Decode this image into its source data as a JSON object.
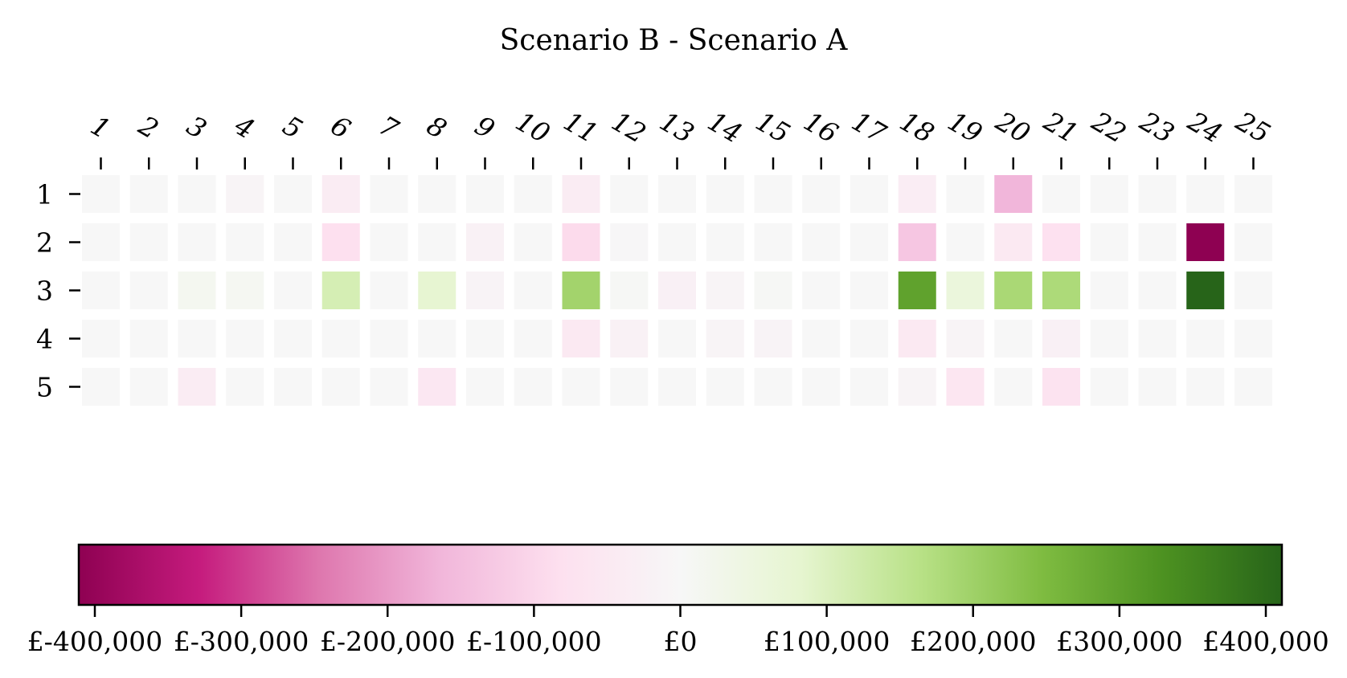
{
  "chart_data": {
    "type": "heatmap",
    "title": "Scenario B - Scenario A",
    "x_categories": [
      "1",
      "2",
      "3",
      "4",
      "5",
      "6",
      "7",
      "8",
      "9",
      "10",
      "11",
      "12",
      "13",
      "14",
      "15",
      "16",
      "17",
      "18",
      "19",
      "20",
      "21",
      "22",
      "23",
      "24",
      "25"
    ],
    "y_categories": [
      "1",
      "2",
      "3",
      "4",
      "5"
    ],
    "values": [
      [
        0,
        0,
        0,
        -10000,
        0,
        -40000,
        0,
        0,
        0,
        0,
        -40000,
        0,
        0,
        0,
        0,
        0,
        0,
        -35000,
        0,
        -160000,
        0,
        0,
        0,
        0,
        0
      ],
      [
        0,
        0,
        0,
        0,
        0,
        -80000,
        0,
        0,
        -20000,
        0,
        -90000,
        -5000,
        0,
        0,
        0,
        0,
        0,
        -130000,
        0,
        -50000,
        -75000,
        0,
        0,
        -400000,
        0
      ],
      [
        0,
        0,
        15000,
        10000,
        0,
        110000,
        0,
        75000,
        -15000,
        0,
        190000,
        5000,
        -25000,
        -10000,
        5000,
        0,
        0,
        290000,
        55000,
        180000,
        175000,
        0,
        0,
        400000,
        0
      ],
      [
        0,
        0,
        0,
        0,
        0,
        0,
        0,
        0,
        0,
        0,
        -50000,
        -20000,
        0,
        -10000,
        -15000,
        0,
        0,
        -50000,
        -10000,
        0,
        -25000,
        0,
        0,
        0,
        0
      ],
      [
        0,
        0,
        -40000,
        0,
        0,
        0,
        0,
        -55000,
        0,
        0,
        0,
        0,
        0,
        0,
        0,
        0,
        0,
        -10000,
        -60000,
        0,
        -70000,
        0,
        0,
        0,
        0
      ]
    ],
    "colorbar": {
      "min": -400000,
      "max": 400000,
      "tick_values": [
        -400000,
        -300000,
        -200000,
        -100000,
        0,
        100000,
        200000,
        300000,
        400000
      ],
      "tick_labels": [
        "£-400,000",
        "£-300,000",
        "£-200,000",
        "£-100,000",
        "£0",
        "£100,000",
        "£200,000",
        "£300,000",
        "£400,000"
      ],
      "colormap": "PiYG",
      "orientation": "horizontal",
      "placement": "bottom"
    },
    "colors": [
      "#8e0152",
      "#c51b7d",
      "#de77ae",
      "#f1b6da",
      "#fde0ef",
      "#f7f7f7",
      "#e6f5d0",
      "#b8e186",
      "#7fbc41",
      "#4d9221",
      "#276419"
    ]
  }
}
